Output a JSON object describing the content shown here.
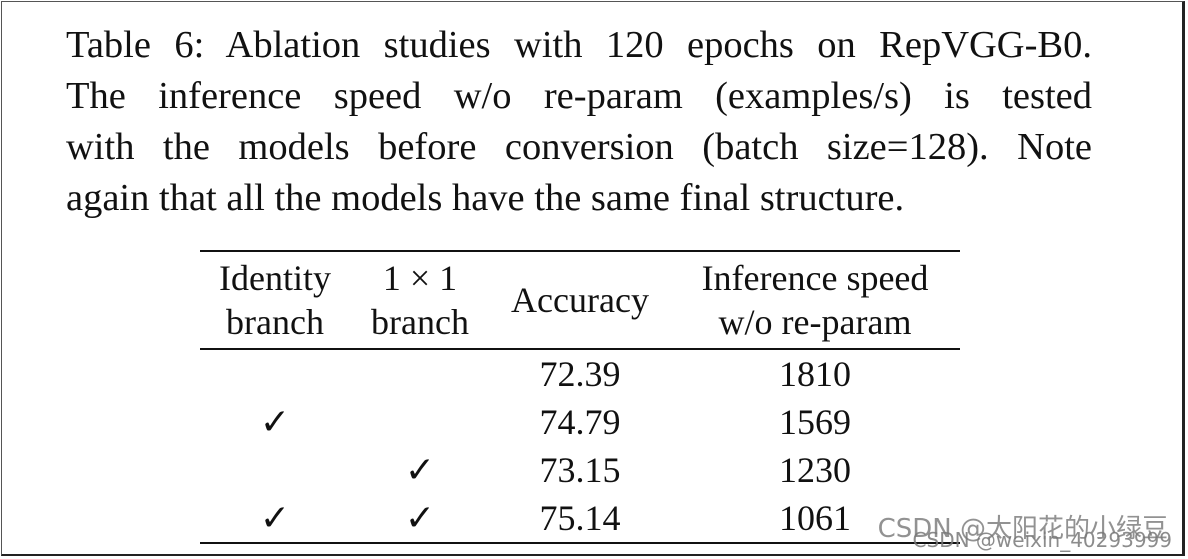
{
  "caption": {
    "lines": [
      "Table 6: Ablation studies with 120 epochs on RepVGG-B0.",
      "The inference speed w/o re-param (examples/s) is tested",
      "with the models before conversion (batch size=128). Note",
      "again that all the models have the same final structure."
    ]
  },
  "table": {
    "headers": {
      "identity": [
        "Identity",
        "branch"
      ],
      "one_by_one": [
        "1 × 1",
        "branch"
      ],
      "accuracy": "Accuracy",
      "inference": [
        "Inference speed",
        "w/o re-param"
      ]
    },
    "rows": [
      {
        "identity": "",
        "one_by_one": "",
        "accuracy": "72.39",
        "inference": "1810"
      },
      {
        "identity": "✓",
        "one_by_one": "",
        "accuracy": "74.79",
        "inference": "1569"
      },
      {
        "identity": "",
        "one_by_one": "✓",
        "accuracy": "73.15",
        "inference": "1230"
      },
      {
        "identity": "✓",
        "one_by_one": "✓",
        "accuracy": "75.14",
        "inference": "1061"
      }
    ],
    "best_accuracy_row": 3
  },
  "watermark": {
    "line1": "CSDN @太阳花的小绿豆",
    "line2": "CSDN @weixin_40293999"
  }
}
